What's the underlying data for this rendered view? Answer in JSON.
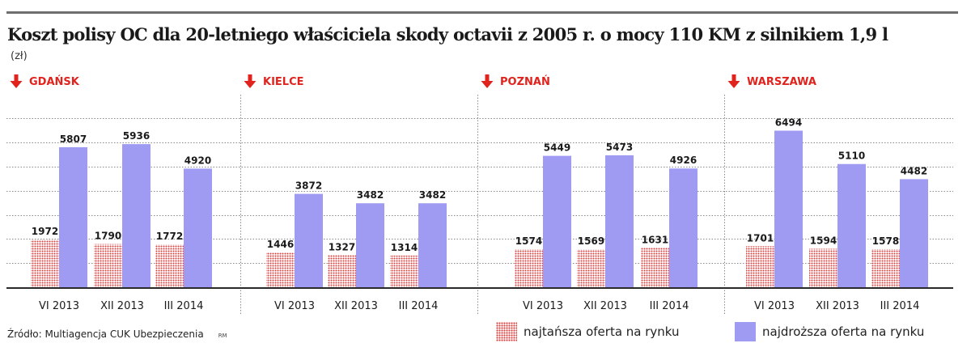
{
  "title": "Koszt polisy OC dla 20-letniego właściciela skody octavii z 2005 r. o mocy 110 KM z silnikiem 1,9 l",
  "unit": "(zł)",
  "source": "Źródło: Multiagencja CUK Ubezpieczenia",
  "credit": "RM",
  "chart_data": {
    "type": "bar",
    "grid": true,
    "ylim": [
      0,
      7000
    ],
    "series": [
      {
        "name": "najtańsza oferta na rynku",
        "color": "#d8413d",
        "fill": "dotted"
      },
      {
        "name": "najdroższa oferta na rynku",
        "color": "#9f9bf3",
        "fill": "solid"
      }
    ],
    "groups": [
      {
        "city": "GDAŃSK",
        "categories": [
          "VI 2013",
          "XII 2013",
          "III 2014"
        ],
        "values": [
          [
            1972,
            1790,
            1772
          ],
          [
            5807,
            5936,
            4920
          ]
        ]
      },
      {
        "city": "KIELCE",
        "categories": [
          "VI 2013",
          "XII 2013",
          "III 2014"
        ],
        "values": [
          [
            1446,
            1327,
            1314
          ],
          [
            3872,
            3482,
            3482
          ]
        ]
      },
      {
        "city": "POZNAŃ",
        "categories": [
          "VI 2013",
          "XII 2013",
          "III 2014"
        ],
        "values": [
          [
            1574,
            1569,
            1631
          ],
          [
            5449,
            5473,
            4926
          ]
        ]
      },
      {
        "city": "WARSZAWA",
        "categories": [
          "VI 2013",
          "XII 2013",
          "III 2014"
        ],
        "values": [
          [
            1701,
            1594,
            1578
          ],
          [
            6494,
            5110,
            4482
          ]
        ]
      }
    ]
  }
}
